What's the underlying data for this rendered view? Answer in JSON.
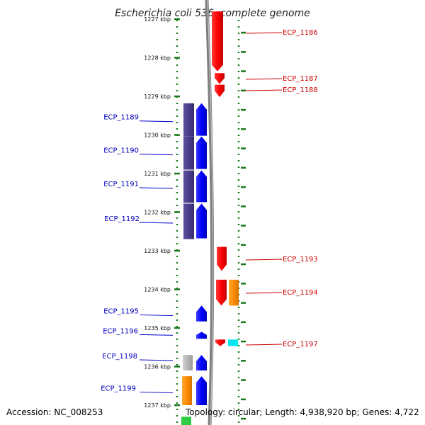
{
  "title": "Escherichia coli 536, complete genome",
  "footer": {
    "accession": "Accession: NC_008253",
    "topology": "Topology: circular; Length: 4,938,920 bp; Genes: 4,722"
  },
  "ruler": {
    "ticks": [
      {
        "label": "1227 kbp",
        "value": 1227
      },
      {
        "label": "1228 kbp",
        "value": 1228
      },
      {
        "label": "1229 kbp",
        "value": 1229
      },
      {
        "label": "1230 kbp",
        "value": 1230
      },
      {
        "label": "1231 kbp",
        "value": 1231
      },
      {
        "label": "1232 kbp",
        "value": 1232
      },
      {
        "label": "1233 kbp",
        "value": 1233
      },
      {
        "label": "1234 kbp",
        "value": 1234
      },
      {
        "label": "1235 kbp",
        "value": 1235
      },
      {
        "label": "1236 kbp",
        "value": 1236
      },
      {
        "label": "1237 kbp",
        "value": 1237
      }
    ]
  },
  "genes_forward": [
    {
      "name": "ECP_1186",
      "start": 1226.8,
      "end": 1228.35
    },
    {
      "name": "ECP_1187",
      "start": 1228.4,
      "end": 1228.68
    },
    {
      "name": "ECP_1188",
      "start": 1228.7,
      "end": 1229.02
    },
    {
      "name": "ECP_1193",
      "start": 1232.9,
      "end": 1233.52
    },
    {
      "name": "ECP_1194",
      "start": 1233.75,
      "end": 1234.42
    },
    {
      "name": "ECP_1197",
      "start": 1235.3,
      "end": 1235.47
    }
  ],
  "genes_reverse": [
    {
      "name": "ECP_1189",
      "start": 1229.18,
      "end": 1230.02
    },
    {
      "name": "ECP_1190",
      "start": 1230.04,
      "end": 1230.88
    },
    {
      "name": "ECP_1191",
      "start": 1230.92,
      "end": 1231.74
    },
    {
      "name": "ECP_1192",
      "start": 1231.78,
      "end": 1232.68
    },
    {
      "name": "ECP_1195",
      "start": 1234.42,
      "end": 1234.83
    },
    {
      "name": "ECP_1196",
      "start": 1235.1,
      "end": 1235.28
    },
    {
      "name": "ECP_1198",
      "start": 1235.7,
      "end": 1236.1
    },
    {
      "name": "ECP_1199",
      "start": 1236.25,
      "end": 1237.0
    }
  ],
  "colors": {
    "forward": "#ff0000",
    "reverse": "#0000ff",
    "forward_label": "#cc0000",
    "reverse_label": "#0000bb",
    "gc_skew": "#4a3d8c",
    "orange": "#ff8c00",
    "cyan": "#00e5ee",
    "gray": "#b0b0b0",
    "green": "#2ecc40",
    "ruler": "#1a7a1a",
    "backbone": "#888888"
  }
}
